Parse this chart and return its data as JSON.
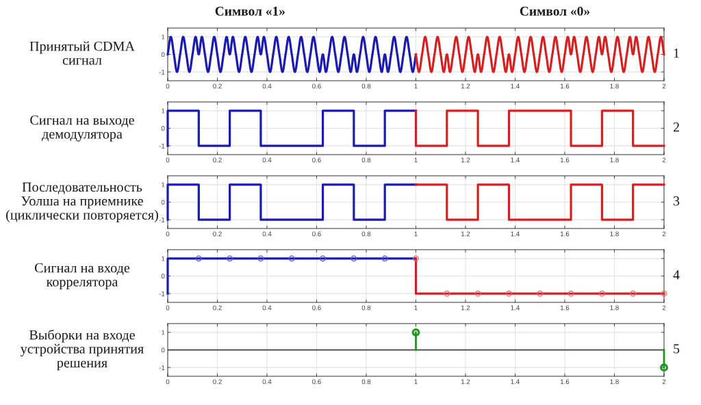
{
  "chart_data": [
    {
      "type": "line",
      "ylabel": "Принятый CDMA\nсигнал",
      "annotations": [
        "Символ «1»",
        "Символ «0»",
        "1"
      ],
      "series": [
        {
          "color": "#1a1ab0",
          "x": [
            0,
            0.0125,
            0.025,
            0.0375,
            0.05,
            0.0625,
            0.075,
            0.0875,
            0.1,
            0.1125,
            0.125,
            0.1375,
            0.15,
            0.1625,
            0.175,
            0.1875,
            0.2,
            0.2125,
            0.225,
            0.2375,
            0.25,
            0.2625,
            0.275,
            0.2875,
            0.3,
            0.3125,
            0.325,
            0.3375,
            0.35,
            0.3625,
            0.375,
            0.3875,
            0.4,
            0.4125,
            0.425,
            0.4375,
            0.45,
            0.4625,
            0.475,
            0.4875,
            0.5,
            0.5125,
            0.525,
            0.5375,
            0.55,
            0.5625,
            0.575,
            0.5875,
            0.6,
            0.6125,
            0.625,
            0.6375,
            0.65,
            0.6625,
            0.675,
            0.6875,
            0.7,
            0.7125,
            0.725,
            0.7375,
            0.75,
            0.7625,
            0.775,
            0.7875,
            0.8,
            0.8125,
            0.825,
            0.8375,
            0.85,
            0.8625,
            0.875,
            0.8875,
            0.9,
            0.9125,
            0.925,
            0.9375,
            0.95,
            0.9625,
            0.975,
            0.9875,
            1
          ],
          "values": [
            0,
            1,
            0,
            -1,
            0,
            1,
            0,
            -1,
            0,
            1,
            0,
            1,
            0,
            -1,
            0,
            1,
            0,
            -1,
            0,
            1,
            0,
            1,
            0,
            -1,
            0,
            1,
            0,
            -1,
            0,
            1,
            0,
            1,
            0,
            -1,
            0,
            1,
            0,
            -1,
            0,
            1,
            0,
            -1,
            0,
            1,
            0,
            -1,
            0,
            1,
            0,
            -1,
            0,
            -1,
            0,
            1,
            0,
            -1,
            0,
            1,
            0,
            -1,
            0,
            -1,
            0,
            1,
            0,
            -1,
            0,
            1,
            0,
            -1,
            0,
            -1,
            0,
            1,
            0,
            -1,
            0,
            1,
            0,
            -1,
            0
          ]
        },
        {
          "color": "#d42020",
          "x": [
            1,
            1.0125,
            1.025,
            1.0375,
            1.05,
            1.0625,
            1.075,
            1.0875,
            1.1,
            1.1125,
            1.125,
            1.1375,
            1.15,
            1.1625,
            1.175,
            1.1875,
            1.2,
            1.2125,
            1.225,
            1.2375,
            1.25,
            1.2625,
            1.275,
            1.2875,
            1.3,
            1.3125,
            1.325,
            1.3375,
            1.35,
            1.3625,
            1.375,
            1.3875,
            1.4,
            1.4125,
            1.425,
            1.4375,
            1.45,
            1.4625,
            1.475,
            1.4875,
            1.5,
            1.5125,
            1.525,
            1.5375,
            1.55,
            1.5625,
            1.575,
            1.5875,
            1.6,
            1.6125,
            1.625,
            1.6375,
            1.65,
            1.6625,
            1.675,
            1.6875,
            1.7,
            1.7125,
            1.725,
            1.7375,
            1.75,
            1.7625,
            1.775,
            1.7875,
            1.8,
            1.8125,
            1.825,
            1.8375,
            1.85,
            1.8625,
            1.875,
            1.8875,
            1.9,
            1.9125,
            1.925,
            1.9375,
            1.95,
            1.9625,
            1.975,
            1.9875,
            2
          ],
          "values": [
            0,
            -1,
            0,
            1,
            0,
            -1,
            0,
            1,
            0,
            -1,
            0,
            -1,
            0,
            1,
            0,
            -1,
            0,
            1,
            0,
            -1,
            0,
            -1,
            0,
            1,
            0,
            -1,
            0,
            1,
            0,
            -1,
            0,
            -1,
            0,
            1,
            0,
            -1,
            0,
            1,
            0,
            -1,
            0,
            1,
            0,
            -1,
            0,
            1,
            0,
            -1,
            0,
            1,
            0,
            1,
            0,
            -1,
            0,
            1,
            0,
            -1,
            0,
            1,
            0,
            1,
            0,
            -1,
            0,
            1,
            0,
            -1,
            0,
            1,
            0,
            1,
            0,
            -1,
            0,
            1,
            0,
            -1,
            0,
            1,
            0
          ]
        }
      ],
      "xlim": [
        0,
        2
      ],
      "ylim": [
        -1.5,
        1.5
      ],
      "xticks": [
        0,
        0.2,
        0.4,
        0.6,
        0.8,
        1,
        1.2,
        1.4,
        1.6,
        1.8,
        2
      ],
      "yticks": [
        -1,
        0,
        1
      ],
      "grid": true
    },
    {
      "type": "step",
      "ylabel": "Сигнал на выходе\nдемодулятора",
      "annotations": [
        "2"
      ],
      "series": [
        {
          "color": "#1a1ab0",
          "x": [
            0,
            0,
            0.125,
            0.25,
            0.375,
            0.625,
            0.75,
            0.875,
            1
          ],
          "values": [
            -1,
            1,
            -1,
            1,
            -1,
            1,
            -1,
            1,
            1
          ]
        },
        {
          "color": "#d42020",
          "x": [
            1,
            1,
            1.125,
            1.25,
            1.375,
            1.625,
            1.75,
            1.875,
            2
          ],
          "values": [
            1,
            -1,
            1,
            -1,
            1,
            -1,
            1,
            -1,
            -1
          ]
        }
      ],
      "xlim": [
        0,
        2
      ],
      "ylim": [
        -1.5,
        1.5
      ],
      "xticks": [
        0,
        0.2,
        0.4,
        0.6,
        0.8,
        1,
        1.2,
        1.4,
        1.6,
        1.8,
        2
      ],
      "yticks": [
        -1,
        0,
        1
      ],
      "grid": true
    },
    {
      "type": "step",
      "ylabel": "Последовательность\nУолша на приемнике\n(циклически повторяется)",
      "annotations": [
        "3"
      ],
      "series": [
        {
          "color": "#1a1ab0",
          "x": [
            0,
            0,
            0.125,
            0.25,
            0.375,
            0.625,
            0.75,
            0.875,
            1
          ],
          "values": [
            -1,
            1,
            -1,
            1,
            -1,
            1,
            -1,
            1,
            1
          ]
        },
        {
          "color": "#d42020",
          "x": [
            1,
            1.125,
            1.25,
            1.375,
            1.625,
            1.75,
            1.875,
            2
          ],
          "values": [
            1,
            -1,
            1,
            -1,
            1,
            -1,
            1,
            1
          ]
        }
      ],
      "xlim": [
        0,
        2
      ],
      "ylim": [
        -1.5,
        1.5
      ],
      "xticks": [
        0,
        0.2,
        0.4,
        0.6,
        0.8,
        1,
        1.2,
        1.4,
        1.6,
        1.8,
        2
      ],
      "yticks": [
        -1,
        0,
        1
      ],
      "grid": true
    },
    {
      "type": "line",
      "ylabel": "Сигнал на входе\nкоррелятора",
      "annotations": [
        "4"
      ],
      "series": [
        {
          "color": "#1a1ab0",
          "x": [
            0,
            0,
            0.125,
            0.25,
            0.375,
            0.5,
            0.625,
            0.75,
            0.875,
            1
          ],
          "values": [
            -1,
            1,
            1,
            1,
            1,
            1,
            1,
            1,
            1,
            1
          ]
        },
        {
          "type": "scatter",
          "marker": "circle",
          "color": "#5a5ad2",
          "x": [
            0.125,
            0.25,
            0.375,
            0.5,
            0.625,
            0.75,
            0.875
          ],
          "values": [
            1,
            1,
            1,
            1,
            1,
            1,
            1
          ]
        },
        {
          "color": "#d42020",
          "x": [
            1,
            1,
            1.125,
            1.25,
            1.375,
            1.5,
            1.625,
            1.75,
            1.875,
            2
          ],
          "values": [
            1,
            -1,
            -1,
            -1,
            -1,
            -1,
            -1,
            -1,
            -1,
            -1
          ]
        },
        {
          "type": "scatter",
          "marker": "circle",
          "color": "#e06a6a",
          "x": [
            1,
            1.125,
            1.25,
            1.375,
            1.5,
            1.625,
            1.75,
            1.875,
            2
          ],
          "values": [
            1,
            -1,
            -1,
            -1,
            -1,
            -1,
            -1,
            -1,
            -1
          ]
        }
      ],
      "xlim": [
        0,
        2
      ],
      "ylim": [
        -1.5,
        1.5
      ],
      "xticks": [
        0,
        0.2,
        0.4,
        0.6,
        0.8,
        1,
        1.2,
        1.4,
        1.6,
        1.8,
        2
      ],
      "yticks": [
        -1,
        0,
        1
      ],
      "grid": true
    },
    {
      "type": "lollipop",
      "ylabel": "Выборки на входе\nустройства принятия\nрешения",
      "annotations": [
        "5"
      ],
      "x": [
        1,
        2
      ],
      "values": [
        1,
        -1
      ],
      "color": "#1e961e",
      "marker": "circle",
      "ref_lines": [
        {
          "axis": "y",
          "value": 0,
          "color": "#505050"
        }
      ],
      "xlim": [
        0,
        2
      ],
      "ylim": [
        -1.5,
        1.5
      ],
      "xticks": [
        0,
        0.2,
        0.4,
        0.6,
        0.8,
        1,
        1.2,
        1.4,
        1.6,
        1.8,
        2
      ],
      "yticks": [
        -1,
        0,
        1
      ],
      "grid": true
    }
  ]
}
